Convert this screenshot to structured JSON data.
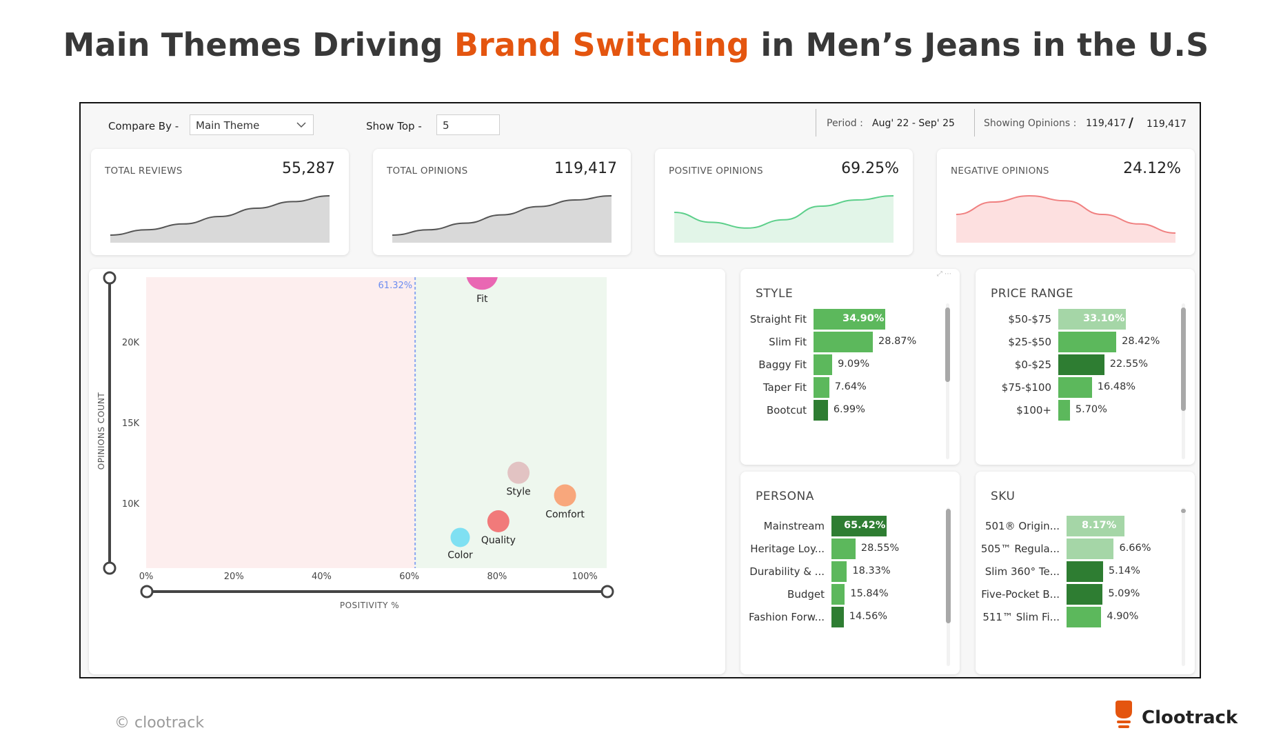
{
  "headline": {
    "pre": "Main Themes Driving ",
    "accent": "Brand Switching",
    "post": " in Men’s Jeans in the U.S"
  },
  "colors": {
    "accent": "#e4550f",
    "positive_zone": "#eef7ee",
    "negative_zone": "#fdeeee",
    "bar_dark": "#2e7d32",
    "bar_mid": "#5cb85c",
    "bar_light": "#a5d6a7"
  },
  "controls": {
    "compare_by_label": "Compare By -",
    "compare_by_value": "Main Theme",
    "show_top_label": "Show Top -",
    "show_top_value": "5",
    "period_label": "Period :",
    "period_value": "Aug' 22 - Sep' 25",
    "showing_label": "Showing Opinions :",
    "showing_value": "119,417",
    "showing_sep": "/",
    "showing_total": "119,417"
  },
  "kpis": [
    {
      "label": "TOTAL REVIEWS",
      "value": "55,287",
      "trend": [
        0.05,
        0.18,
        0.32,
        0.5,
        0.7,
        0.86,
        1.0
      ],
      "color": "#555555",
      "fill": "#d9d9d9"
    },
    {
      "label": "TOTAL OPINIONS",
      "value": "119,417",
      "trend": [
        0.05,
        0.18,
        0.34,
        0.54,
        0.74,
        0.9,
        1.0
      ],
      "color": "#555555",
      "fill": "#d9d9d9"
    },
    {
      "label": "POSITIVE OPINIONS",
      "value": "69.25%",
      "trend": [
        0.6,
        0.36,
        0.22,
        0.42,
        0.75,
        0.9,
        1.0
      ],
      "color": "#5ccf8a",
      "fill": "#e2f5e8"
    },
    {
      "label": "NEGATIVE OPINIONS",
      "value": "24.12%",
      "trend": [
        0.55,
        0.85,
        1.0,
        0.88,
        0.55,
        0.32,
        0.1
      ],
      "color": "#f08080",
      "fill": "#fde0e0"
    }
  ],
  "chart_data": [
    {
      "type": "scatter",
      "xlabel": "POSITIVITY %",
      "ylabel": "OPINIONS COUNT",
      "xlim": [
        0,
        105
      ],
      "ylim": [
        6000,
        24000
      ],
      "x_ticks": [
        "0%",
        "20%",
        "40%",
        "60%",
        "80%",
        "100%"
      ],
      "x_tick_values": [
        0,
        20,
        40,
        60,
        80,
        100
      ],
      "y_ticks": [
        "10K",
        "15K",
        "20K"
      ],
      "y_tick_values": [
        10000,
        15000,
        20000
      ],
      "threshold": {
        "x": 61.32,
        "label": "61.32%"
      },
      "points": [
        {
          "name": "Fit",
          "x": 76.6,
          "y": 24200,
          "color": "#e967b3"
        },
        {
          "name": "Style",
          "x": 84.9,
          "y": 11900,
          "color": "#e2c3c3"
        },
        {
          "name": "Comfort",
          "x": 95.5,
          "y": 10500,
          "color": "#f8a77c"
        },
        {
          "name": "Quality",
          "x": 80.3,
          "y": 8900,
          "color": "#f17a7a"
        },
        {
          "name": "Color",
          "x": 71.6,
          "y": 7900,
          "color": "#7fe0f2"
        }
      ]
    },
    {
      "type": "bar",
      "title": "STYLE",
      "categories": [
        "Straight Fit",
        "Slim Fit",
        "Baggy Fit",
        "Taper Fit",
        "Bootcut"
      ],
      "values": [
        34.9,
        28.87,
        9.09,
        7.64,
        6.99
      ],
      "labels": [
        "34.90%",
        "28.87%",
        "9.09%",
        "7.64%",
        "6.99%"
      ],
      "colors": [
        "#5cb85c",
        "#5cb85c",
        "#5cb85c",
        "#5cb85c",
        "#2e7d32"
      ]
    },
    {
      "type": "bar",
      "title": "PRICE RANGE",
      "categories": [
        "$50-$75",
        "$25-$50",
        "$0-$25",
        "$75-$100",
        "$100+"
      ],
      "values": [
        33.1,
        28.42,
        22.55,
        16.48,
        5.7
      ],
      "labels": [
        "33.10%",
        "28.42%",
        "22.55%",
        "16.48%",
        "5.70%"
      ],
      "colors": [
        "#a5d6a7",
        "#5cb85c",
        "#2e7d32",
        "#5cb85c",
        "#5cb85c"
      ]
    },
    {
      "type": "bar",
      "title": "PERSONA",
      "categories": [
        "Mainstream",
        "Heritage Loy...",
        "Durability & ...",
        "Budget",
        "Fashion Forw..."
      ],
      "values": [
        65.42,
        28.55,
        18.33,
        15.84,
        14.56
      ],
      "labels": [
        "65.42%",
        "28.55%",
        "18.33%",
        "15.84%",
        "14.56%"
      ],
      "colors": [
        "#2e7d32",
        "#5cb85c",
        "#5cb85c",
        "#5cb85c",
        "#2e7d32"
      ]
    },
    {
      "type": "bar",
      "title": "SKU",
      "categories": [
        "501® Origin...",
        "505™ Regula...",
        "Slim 360° Te...",
        "Five-Pocket B...",
        "511™ Slim Fi..."
      ],
      "values": [
        8.17,
        6.66,
        5.14,
        5.09,
        4.9
      ],
      "labels": [
        "8.17%",
        "6.66%",
        "5.14%",
        "5.09%",
        "4.90%"
      ],
      "colors": [
        "#a5d6a7",
        "#a5d6a7",
        "#2e7d32",
        "#2e7d32",
        "#5cb85c"
      ]
    }
  ],
  "footer": {
    "copyright": "© clootrack",
    "brand": "Clootrack"
  }
}
